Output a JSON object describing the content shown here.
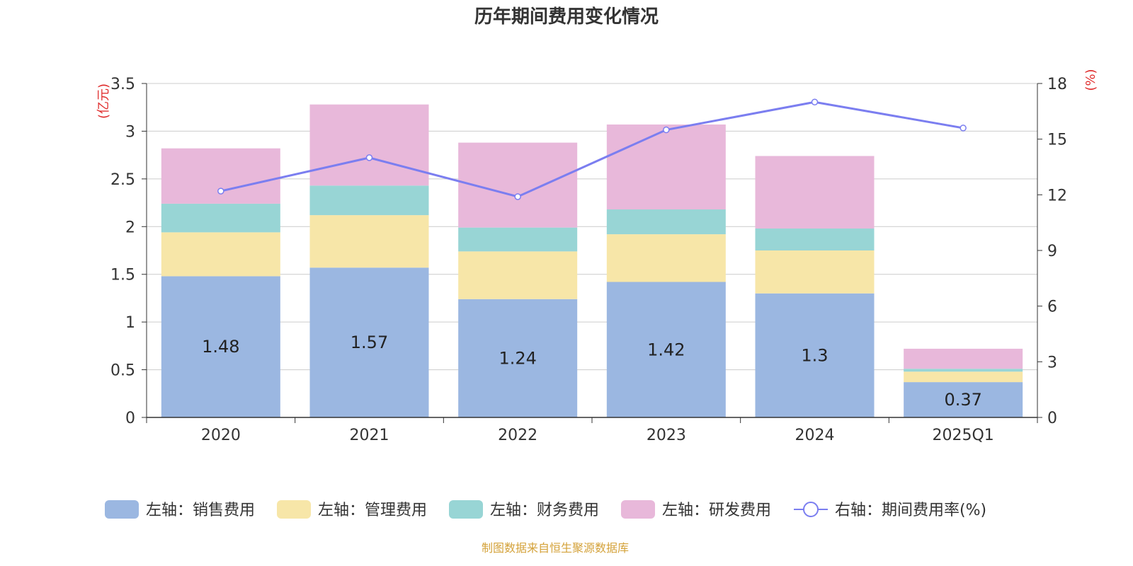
{
  "chart_data": {
    "type": "bar",
    "stacked": true,
    "title": "历年期间费用变化情况",
    "categories": [
      "2020",
      "2021",
      "2022",
      "2023",
      "2024",
      "2025Q1"
    ],
    "left_axis": {
      "unit": "(亿元)",
      "ylim": [
        0,
        3.5
      ],
      "ticks": [
        "0",
        "0.5",
        "1",
        "1.5",
        "2",
        "2.5",
        "3",
        "3.5"
      ]
    },
    "right_axis": {
      "unit": "(%)",
      "ylim": [
        0,
        18
      ],
      "ticks": [
        "0",
        "3",
        "6",
        "9",
        "12",
        "15",
        "18"
      ]
    },
    "series": [
      {
        "name": "左轴：销售费用",
        "axis": "left",
        "color": "#9bb7e1",
        "values": [
          1.48,
          1.57,
          1.24,
          1.42,
          1.3,
          0.37
        ],
        "labels": [
          "1.48",
          "1.57",
          "1.24",
          "1.42",
          "1.3",
          "0.37"
        ]
      },
      {
        "name": "左轴：管理费用",
        "axis": "left",
        "color": "#f7e6a8",
        "values": [
          0.46,
          0.55,
          0.5,
          0.5,
          0.45,
          0.11
        ]
      },
      {
        "name": "左轴：财务费用",
        "axis": "left",
        "color": "#98d5d5",
        "values": [
          0.3,
          0.31,
          0.25,
          0.26,
          0.23,
          0.03
        ]
      },
      {
        "name": "左轴：研发费用",
        "axis": "left",
        "color": "#e8b8da",
        "values": [
          0.58,
          0.85,
          0.89,
          0.89,
          0.76,
          0.21
        ]
      },
      {
        "name": "右轴：期间费用率(%)",
        "axis": "right",
        "type": "line",
        "color": "#7b7ef0",
        "values": [
          12.2,
          14.0,
          11.9,
          15.5,
          17.0,
          15.6
        ]
      }
    ],
    "grid": true,
    "legend_position": "bottom"
  },
  "footer": {
    "source": "制图数据来自恒生聚源数据库"
  },
  "colors": {
    "axis_unit": "#e03030",
    "footer": "#d4a23a",
    "grid": "#cccccc",
    "axis": "#333333"
  }
}
